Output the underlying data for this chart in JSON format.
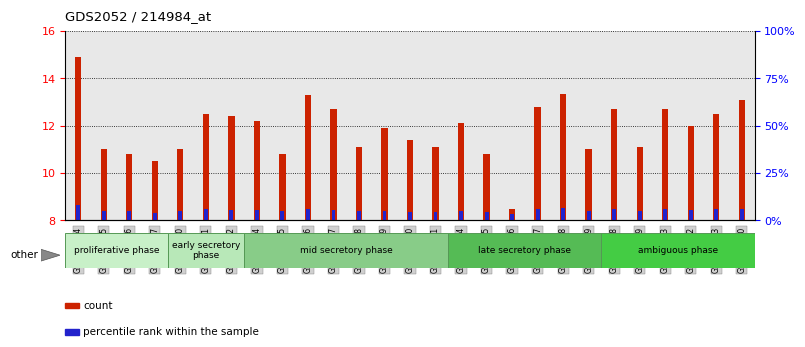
{
  "title": "GDS2052 / 214984_at",
  "samples": [
    "GSM109814",
    "GSM109815",
    "GSM109816",
    "GSM109817",
    "GSM109820",
    "GSM109821",
    "GSM109822",
    "GSM109824",
    "GSM109825",
    "GSM109826",
    "GSM109827",
    "GSM109828",
    "GSM109829",
    "GSM109830",
    "GSM109831",
    "GSM109834",
    "GSM109835",
    "GSM109836",
    "GSM109837",
    "GSM109838",
    "GSM109839",
    "GSM109818",
    "GSM109819",
    "GSM109823",
    "GSM109832",
    "GSM109833",
    "GSM109840"
  ],
  "count_values": [
    14.9,
    11.0,
    10.8,
    10.5,
    11.0,
    12.5,
    12.4,
    12.2,
    10.8,
    13.3,
    12.7,
    11.1,
    11.9,
    11.4,
    11.1,
    12.1,
    10.8,
    8.5,
    12.8,
    13.35,
    11.0,
    12.7,
    11.1,
    12.7,
    12.0,
    12.5,
    13.1
  ],
  "percentile_values": [
    0.65,
    0.4,
    0.38,
    0.32,
    0.4,
    0.48,
    0.45,
    0.44,
    0.38,
    0.48,
    0.44,
    0.4,
    0.4,
    0.36,
    0.36,
    0.4,
    0.36,
    0.28,
    0.48,
    0.52,
    0.4,
    0.48,
    0.4,
    0.48,
    0.44,
    0.48,
    0.48
  ],
  "bar_bottom": 8.0,
  "ylim_left": [
    8.0,
    16.0
  ],
  "ylim_right": [
    0,
    100
  ],
  "yticks_left": [
    8,
    10,
    12,
    14,
    16
  ],
  "yticks_right": [
    0,
    25,
    50,
    75,
    100
  ],
  "phases": [
    {
      "label": "proliferative phase",
      "start": 0,
      "end": 4,
      "color": "#c8f0c8"
    },
    {
      "label": "early secretory\nphase",
      "start": 4,
      "end": 7,
      "color": "#b8e8b8"
    },
    {
      "label": "mid secretory phase",
      "start": 7,
      "end": 15,
      "color": "#88cc88"
    },
    {
      "label": "late secretory phase",
      "start": 15,
      "end": 21,
      "color": "#55bb55"
    },
    {
      "label": "ambiguous phase",
      "start": 21,
      "end": 27,
      "color": "#44cc44"
    }
  ],
  "bar_color_red": "#cc2200",
  "bar_color_blue": "#2222cc",
  "bg_color": "#e8e8e8",
  "tick_bg_color": "#d0d0d0",
  "other_label": "other",
  "legend_count": "count",
  "legend_percentile": "percentile rank within the sample",
  "red_bar_width": 0.25,
  "blue_bar_width": 0.15
}
